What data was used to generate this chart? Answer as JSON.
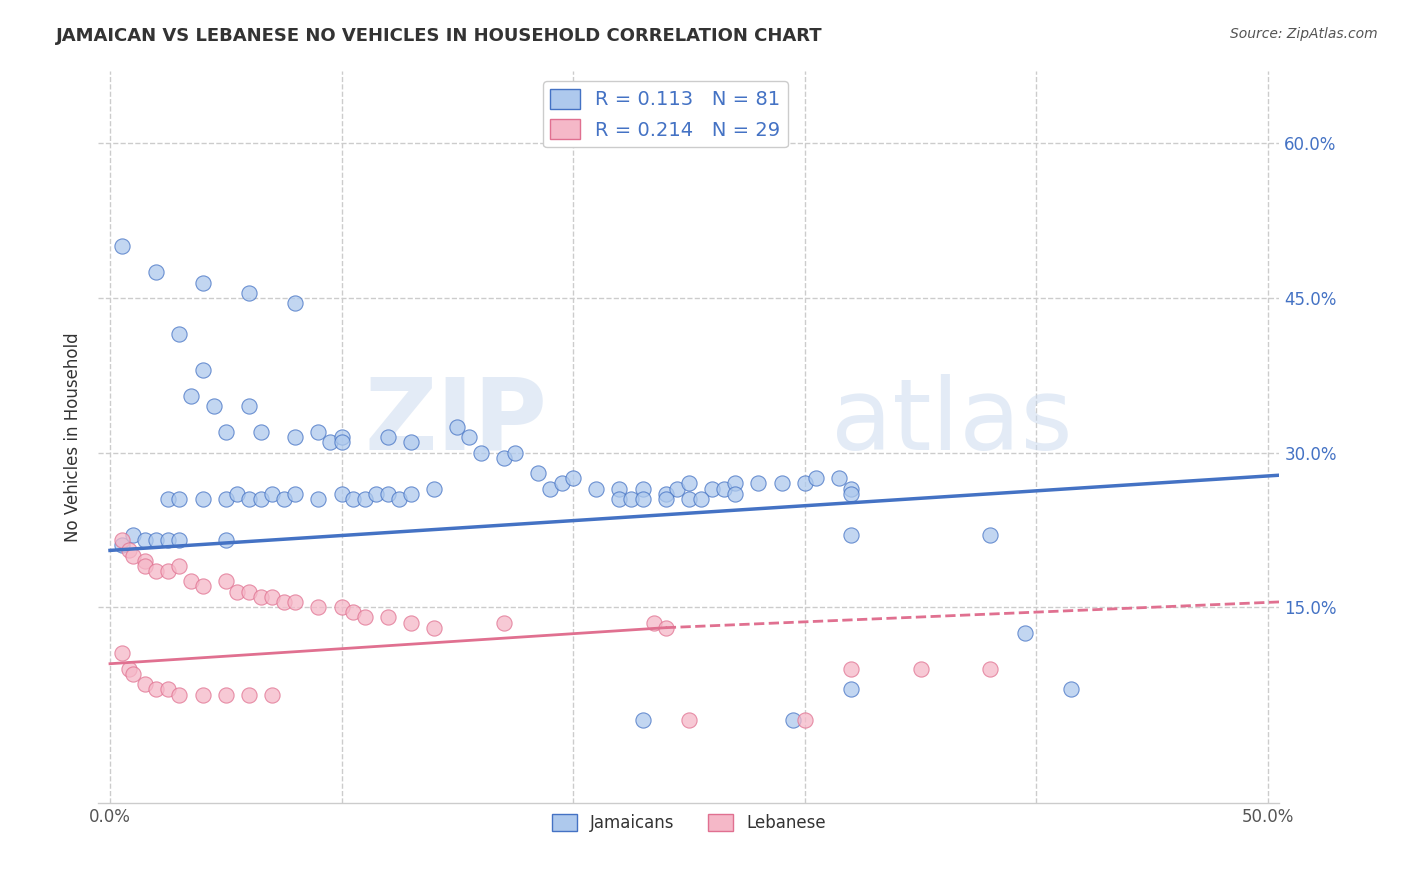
{
  "title": "JAMAICAN VS LEBANESE NO VEHICLES IN HOUSEHOLD CORRELATION CHART",
  "source_text": "Source: ZipAtlas.com",
  "ylabel": "No Vehicles in Household",
  "xlim": [
    -0.005,
    0.505
  ],
  "ylim": [
    -0.04,
    0.67
  ],
  "xticks": [
    0.0,
    0.1,
    0.2,
    0.3,
    0.4,
    0.5
  ],
  "xticklabels": [
    "0.0%",
    "",
    "",
    "",
    "",
    "50.0%"
  ],
  "yticks": [
    0.15,
    0.3,
    0.45,
    0.6
  ],
  "yticklabels": [
    "15.0%",
    "30.0%",
    "45.0%",
    "60.0%"
  ],
  "jamaican_R": 0.113,
  "jamaican_N": 81,
  "lebanese_R": 0.214,
  "lebanese_N": 29,
  "jamaican_color": "#aec9ed",
  "jamaican_line_color": "#4472c4",
  "lebanese_color": "#f5b8c8",
  "lebanese_line_color": "#e07090",
  "watermark_zip": "ZIP",
  "watermark_atlas": "atlas",
  "jamaican_points": [
    [
      0.005,
      0.5
    ],
    [
      0.02,
      0.475
    ],
    [
      0.04,
      0.465
    ],
    [
      0.06,
      0.455
    ],
    [
      0.08,
      0.445
    ],
    [
      0.03,
      0.415
    ],
    [
      0.04,
      0.38
    ],
    [
      0.035,
      0.355
    ],
    [
      0.045,
      0.345
    ],
    [
      0.06,
      0.345
    ],
    [
      0.05,
      0.32
    ],
    [
      0.065,
      0.32
    ],
    [
      0.08,
      0.315
    ],
    [
      0.09,
      0.32
    ],
    [
      0.095,
      0.31
    ],
    [
      0.1,
      0.315
    ],
    [
      0.1,
      0.31
    ],
    [
      0.12,
      0.315
    ],
    [
      0.13,
      0.31
    ],
    [
      0.15,
      0.325
    ],
    [
      0.155,
      0.315
    ],
    [
      0.16,
      0.3
    ],
    [
      0.17,
      0.295
    ],
    [
      0.175,
      0.3
    ],
    [
      0.185,
      0.28
    ],
    [
      0.19,
      0.265
    ],
    [
      0.195,
      0.27
    ],
    [
      0.2,
      0.275
    ],
    [
      0.21,
      0.265
    ],
    [
      0.22,
      0.265
    ],
    [
      0.23,
      0.265
    ],
    [
      0.24,
      0.26
    ],
    [
      0.245,
      0.265
    ],
    [
      0.25,
      0.27
    ],
    [
      0.26,
      0.265
    ],
    [
      0.265,
      0.265
    ],
    [
      0.27,
      0.27
    ],
    [
      0.27,
      0.26
    ],
    [
      0.28,
      0.27
    ],
    [
      0.29,
      0.27
    ],
    [
      0.3,
      0.27
    ],
    [
      0.305,
      0.275
    ],
    [
      0.315,
      0.275
    ],
    [
      0.32,
      0.265
    ],
    [
      0.32,
      0.26
    ],
    [
      0.025,
      0.255
    ],
    [
      0.03,
      0.255
    ],
    [
      0.04,
      0.255
    ],
    [
      0.05,
      0.255
    ],
    [
      0.055,
      0.26
    ],
    [
      0.06,
      0.255
    ],
    [
      0.065,
      0.255
    ],
    [
      0.07,
      0.26
    ],
    [
      0.075,
      0.255
    ],
    [
      0.08,
      0.26
    ],
    [
      0.09,
      0.255
    ],
    [
      0.1,
      0.26
    ],
    [
      0.105,
      0.255
    ],
    [
      0.11,
      0.255
    ],
    [
      0.115,
      0.26
    ],
    [
      0.12,
      0.26
    ],
    [
      0.125,
      0.255
    ],
    [
      0.13,
      0.26
    ],
    [
      0.14,
      0.265
    ],
    [
      0.22,
      0.255
    ],
    [
      0.225,
      0.255
    ],
    [
      0.23,
      0.255
    ],
    [
      0.24,
      0.255
    ],
    [
      0.25,
      0.255
    ],
    [
      0.255,
      0.255
    ],
    [
      0.32,
      0.22
    ],
    [
      0.38,
      0.22
    ],
    [
      0.005,
      0.21
    ],
    [
      0.01,
      0.22
    ],
    [
      0.015,
      0.215
    ],
    [
      0.02,
      0.215
    ],
    [
      0.025,
      0.215
    ],
    [
      0.03,
      0.215
    ],
    [
      0.05,
      0.215
    ],
    [
      0.395,
      0.125
    ],
    [
      0.415,
      0.07
    ],
    [
      0.32,
      0.07
    ],
    [
      0.23,
      0.04
    ],
    [
      0.295,
      0.04
    ]
  ],
  "lebanese_points": [
    [
      0.005,
      0.215
    ],
    [
      0.008,
      0.205
    ],
    [
      0.01,
      0.2
    ],
    [
      0.015,
      0.195
    ],
    [
      0.015,
      0.19
    ],
    [
      0.02,
      0.185
    ],
    [
      0.025,
      0.185
    ],
    [
      0.03,
      0.19
    ],
    [
      0.035,
      0.175
    ],
    [
      0.04,
      0.17
    ],
    [
      0.05,
      0.175
    ],
    [
      0.055,
      0.165
    ],
    [
      0.06,
      0.165
    ],
    [
      0.065,
      0.16
    ],
    [
      0.07,
      0.16
    ],
    [
      0.075,
      0.155
    ],
    [
      0.08,
      0.155
    ],
    [
      0.09,
      0.15
    ],
    [
      0.1,
      0.15
    ],
    [
      0.105,
      0.145
    ],
    [
      0.11,
      0.14
    ],
    [
      0.12,
      0.14
    ],
    [
      0.13,
      0.135
    ],
    [
      0.14,
      0.13
    ],
    [
      0.005,
      0.105
    ],
    [
      0.008,
      0.09
    ],
    [
      0.01,
      0.085
    ],
    [
      0.015,
      0.075
    ],
    [
      0.02,
      0.07
    ],
    [
      0.025,
      0.07
    ],
    [
      0.03,
      0.065
    ],
    [
      0.04,
      0.065
    ],
    [
      0.05,
      0.065
    ],
    [
      0.06,
      0.065
    ],
    [
      0.07,
      0.065
    ],
    [
      0.17,
      0.135
    ],
    [
      0.235,
      0.135
    ],
    [
      0.32,
      0.09
    ],
    [
      0.35,
      0.09
    ],
    [
      0.38,
      0.09
    ],
    [
      0.24,
      0.13
    ],
    [
      0.25,
      0.04
    ],
    [
      0.3,
      0.04
    ]
  ],
  "jamaican_trend": [
    0.0,
    0.205,
    0.505,
    0.278
  ],
  "lebanese_trend_solid": [
    0.0,
    0.095,
    0.24,
    0.13
  ],
  "lebanese_trend_dashed": [
    0.24,
    0.13,
    0.505,
    0.155
  ]
}
